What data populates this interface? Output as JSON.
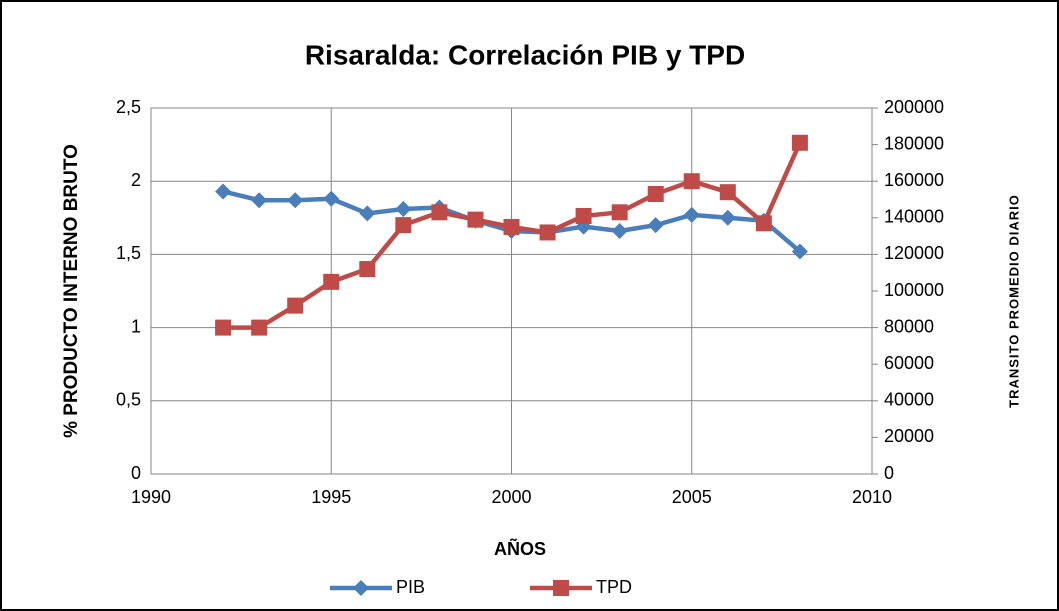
{
  "chart_data": {
    "type": "line",
    "title": "Risaralda: Correlación PIB  y TPD",
    "xlabel": "AÑOS",
    "ylabel": "% PRODUCTO INTERNO BRUTO",
    "y2label": "TRANSITO PROMEDIO DIARIO",
    "x": [
      1992,
      1993,
      1994,
      1995,
      1996,
      1997,
      1998,
      1999,
      2000,
      2001,
      2002,
      2003,
      2004,
      2005,
      2006,
      2007,
      2008
    ],
    "series": [
      {
        "name": "PIB",
        "color": "#4a7ebb",
        "marker": "diamond",
        "values": [
          1.93,
          1.87,
          1.87,
          1.88,
          1.78,
          1.81,
          1.82,
          1.73,
          1.66,
          1.65,
          1.69,
          1.66,
          1.7,
          1.77,
          1.75,
          1.73,
          1.52
        ]
      },
      {
        "name": "TPD",
        "color": "#be4b48",
        "marker": "square",
        "axis": "y2",
        "values": [
          80000,
          80000,
          92000,
          105000,
          112000,
          136000,
          143000,
          139000,
          135000,
          132000,
          141000,
          143000,
          153000,
          160000,
          154000,
          137000,
          181000
        ]
      }
    ],
    "xlim": [
      1990,
      2010
    ],
    "xticks": [
      1990,
      1995,
      2000,
      2005,
      2010
    ],
    "ylim": [
      0,
      2.5
    ],
    "yticks": [
      0,
      {
        "value": 0.5,
        "label": "0,5"
      },
      1,
      {
        "value": 1.5,
        "label": "1,5"
      },
      2,
      {
        "value": 2.5,
        "label": "2,5"
      }
    ],
    "y2lim": [
      0,
      200000
    ],
    "y2ticks": [
      0,
      20000,
      40000,
      60000,
      80000,
      100000,
      120000,
      140000,
      160000,
      180000,
      200000
    ],
    "grid": true,
    "legend": "bottom"
  }
}
